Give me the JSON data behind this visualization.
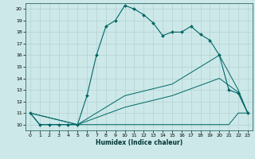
{
  "xlabel": "Humidex (Indice chaleur)",
  "xlim": [
    -0.5,
    23.5
  ],
  "ylim": [
    9.5,
    20.5
  ],
  "xticks": [
    0,
    1,
    2,
    3,
    4,
    5,
    6,
    7,
    8,
    9,
    10,
    11,
    12,
    13,
    14,
    15,
    16,
    17,
    18,
    19,
    20,
    21,
    22,
    23
  ],
  "yticks": [
    10,
    11,
    12,
    13,
    14,
    15,
    16,
    17,
    18,
    19,
    20
  ],
  "bg_color": "#cce8e8",
  "grid_color": "#b8d4d4",
  "line_color": "#006666",
  "line1_x": [
    0,
    1,
    2,
    3,
    4,
    5,
    6,
    7,
    8,
    9,
    10,
    11,
    12,
    13,
    14,
    15,
    16,
    17,
    18,
    19,
    20,
    21,
    22,
    23
  ],
  "line1_y": [
    11,
    10,
    10,
    10,
    10,
    10,
    12.5,
    16.0,
    18.5,
    19.0,
    20.3,
    20.0,
    19.5,
    18.8,
    17.7,
    18.0,
    18.0,
    18.5,
    17.8,
    17.3,
    16.0,
    13.0,
    12.7,
    11.0
  ],
  "line2_x": [
    0,
    1,
    2,
    3,
    4,
    5,
    6,
    7,
    8,
    9,
    10,
    11,
    12,
    13,
    14,
    15,
    16,
    17,
    18,
    19,
    20,
    21,
    22,
    23
  ],
  "line2_y": [
    11,
    10,
    10,
    10,
    10,
    10,
    10,
    10,
    10,
    10,
    10,
    10,
    10,
    10,
    10,
    10,
    10,
    10,
    10,
    10,
    10,
    10,
    11,
    11
  ],
  "line3_x": [
    0,
    5,
    10,
    15,
    20,
    22,
    23
  ],
  "line3_y": [
    11,
    10,
    12.5,
    13.5,
    16.0,
    13.0,
    11.0
  ],
  "line4_x": [
    0,
    5,
    10,
    15,
    20,
    22,
    23
  ],
  "line4_y": [
    11,
    10,
    11.5,
    12.5,
    14.0,
    12.8,
    11.0
  ]
}
